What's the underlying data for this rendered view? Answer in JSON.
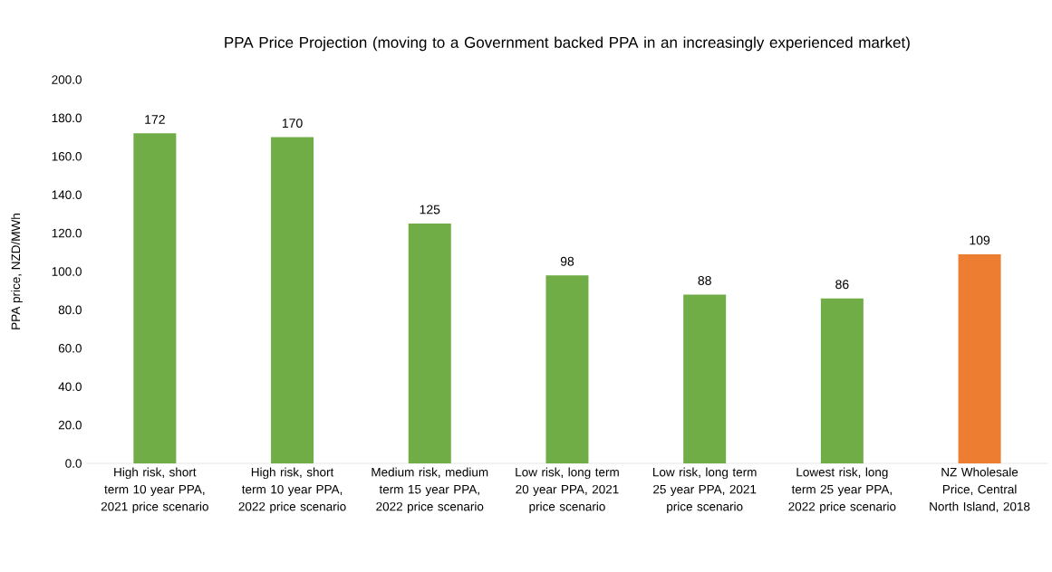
{
  "chart_data": {
    "type": "bar",
    "title": "PPA Price Projection (moving to a Government backed PPA in an increasingly experienced market)",
    "ylabel": "PPA price, NZD/MWh",
    "categories": [
      "High risk, short term 10 year PPA, 2021 price scenario",
      "High risk, short term 10 year PPA, 2022 price scenario",
      "Medium risk, medium term 15 year PPA, 2022 price scenario",
      "Low risk, long term 20 year PPA, 2021 price scenario",
      "Low risk, long term 25 year PPA, 2021 price scenario",
      "Lowest risk, long term 25 year PPA, 2022 price scenario",
      "NZ Wholesale Price, Central North Island, 2018"
    ],
    "values": [
      172,
      170,
      125,
      98,
      88,
      86,
      109
    ],
    "colors": [
      "#70ad47",
      "#70ad47",
      "#70ad47",
      "#70ad47",
      "#70ad47",
      "#70ad47",
      "#ed7d31"
    ],
    "data_labels": true,
    "ylim": [
      0,
      200
    ],
    "yticks": [
      {
        "value": 0,
        "label": "0.0"
      },
      {
        "value": 20,
        "label": "20.0"
      },
      {
        "value": 40,
        "label": "40.0"
      },
      {
        "value": 60,
        "label": "60.0"
      },
      {
        "value": 80,
        "label": "80.0"
      },
      {
        "value": 100,
        "label": "100.0"
      },
      {
        "value": 120,
        "label": "120.0"
      },
      {
        "value": 140,
        "label": "140.0"
      },
      {
        "value": 160,
        "label": "160.0"
      },
      {
        "value": 180,
        "label": "180.0"
      },
      {
        "value": 200,
        "label": "200.0"
      }
    ]
  }
}
